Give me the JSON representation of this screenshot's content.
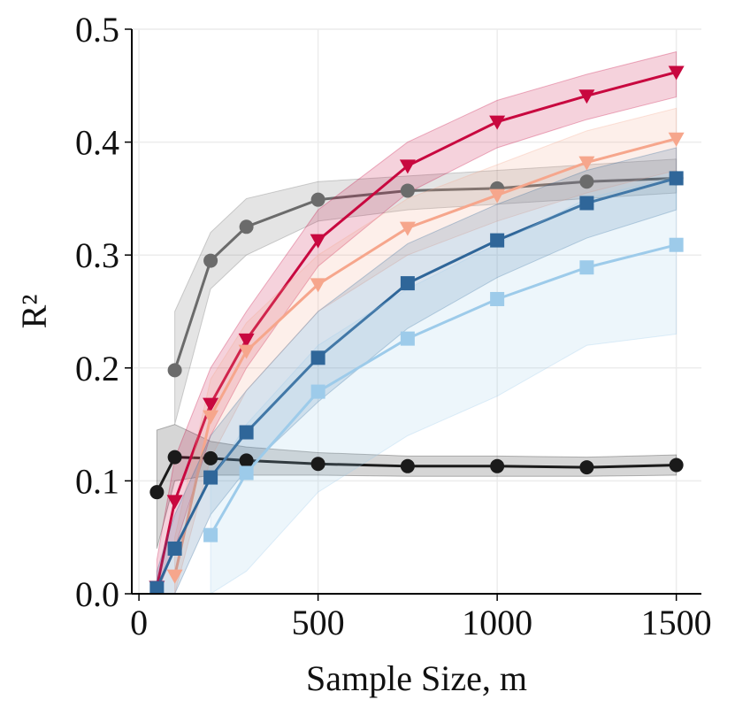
{
  "chart_data": {
    "type": "line",
    "xlabel": "Sample Size, m",
    "ylabel": "R²",
    "x": [
      50,
      100,
      200,
      300,
      500,
      750,
      1000,
      1250,
      1500
    ],
    "xlim": [
      -20,
      1570
    ],
    "xticks": [
      0,
      500,
      1000,
      1500
    ],
    "ylim": [
      0,
      0.5
    ],
    "yticks": [
      {
        "value": 0,
        "label": "0.0"
      },
      0.1,
      0.2,
      0.3,
      0.4,
      0.5
    ],
    "grid": true,
    "series": [
      {
        "color": "#6b6b6b",
        "marker": "circle",
        "values": [
          null,
          0.198,
          0.295,
          0.325,
          0.349,
          0.357,
          0.359,
          0.365,
          0.368
        ],
        "lower": [
          null,
          0.15,
          0.27,
          0.3,
          0.33,
          0.34,
          0.345,
          0.35,
          0.355
        ],
        "upper": [
          null,
          0.25,
          0.32,
          0.35,
          0.365,
          0.37,
          0.375,
          0.38,
          0.385
        ]
      },
      {
        "color": "#1a1a1a",
        "marker": "circle",
        "values": [
          0.09,
          0.121,
          0.12,
          0.118,
          0.115,
          0.113,
          0.113,
          0.112,
          0.114
        ],
        "lower": [
          0.04,
          0.1,
          0.105,
          0.105,
          0.105,
          0.104,
          0.104,
          0.104,
          0.105
        ],
        "upper": [
          0.145,
          0.15,
          0.135,
          0.13,
          0.125,
          0.122,
          0.122,
          0.121,
          0.123
        ]
      },
      {
        "color": "#c8083f",
        "marker": "triangle-down",
        "values": [
          0.006,
          0.082,
          0.168,
          0.225,
          0.313,
          0.379,
          0.418,
          0.441,
          0.462
        ],
        "lower": [
          0,
          0.04,
          0.14,
          0.2,
          0.29,
          0.355,
          0.395,
          0.42,
          0.44
        ],
        "upper": [
          0.03,
          0.12,
          0.2,
          0.25,
          0.34,
          0.4,
          0.437,
          0.46,
          0.48
        ]
      },
      {
        "color": "#f6a68c",
        "marker": "triangle-down",
        "values": [
          null,
          0.016,
          0.157,
          0.215,
          0.274,
          0.324,
          0.353,
          0.382,
          0.403
        ],
        "lower": [
          null,
          0,
          0.12,
          0.18,
          0.25,
          0.3,
          0.33,
          0.355,
          0.375
        ],
        "upper": [
          null,
          0.05,
          0.19,
          0.24,
          0.3,
          0.35,
          0.38,
          0.41,
          0.43
        ]
      },
      {
        "color": "#2f6699",
        "marker": "square",
        "values": [
          0.005,
          0.04,
          0.103,
          0.143,
          0.209,
          0.275,
          0.313,
          0.346,
          0.368
        ],
        "lower": [
          0,
          0,
          0.07,
          0.11,
          0.17,
          0.235,
          0.28,
          0.315,
          0.34
        ],
        "upper": [
          0.02,
          0.07,
          0.14,
          0.18,
          0.25,
          0.31,
          0.345,
          0.375,
          0.395
        ]
      },
      {
        "color": "#9dcbea",
        "marker": "square",
        "values": [
          null,
          null,
          0.052,
          0.107,
          0.179,
          0.226,
          0.261,
          0.289,
          0.309
        ],
        "lower": [
          null,
          null,
          0,
          0.02,
          0.09,
          0.14,
          0.175,
          0.22,
          0.23
        ],
        "upper": [
          null,
          null,
          0.1,
          0.15,
          0.22,
          0.27,
          0.31,
          0.35,
          0.37
        ]
      }
    ]
  }
}
